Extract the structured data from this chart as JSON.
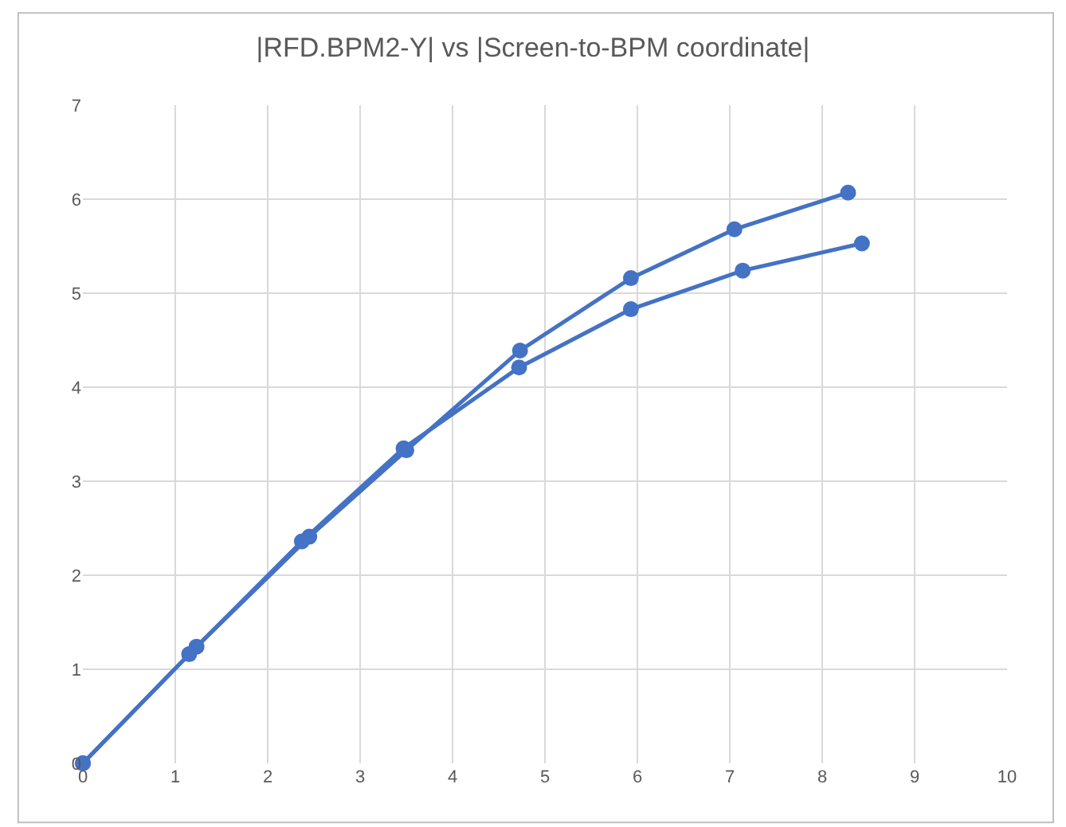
{
  "chart_data": {
    "type": "line",
    "title": "|RFD.BPM2-Y| vs |Screen-to-BPM coordinate|",
    "series": [
      {
        "color": "#4472c4",
        "x": [
          0,
          1.23,
          2.45,
          3.5,
          4.73,
          5.93,
          7.05,
          8.28
        ],
        "values": [
          0,
          1.24,
          2.41,
          3.33,
          4.39,
          5.16,
          5.68,
          6.07
        ]
      },
      {
        "color": "#4472c4",
        "x": [
          0,
          1.15,
          2.37,
          3.47,
          4.72,
          5.93,
          7.14,
          8.43
        ],
        "values": [
          0,
          1.16,
          2.36,
          3.35,
          4.21,
          4.83,
          5.24,
          5.53
        ]
      }
    ],
    "xlim": [
      0,
      10
    ],
    "xticks": [
      0,
      1,
      2,
      3,
      4,
      5,
      6,
      7,
      8,
      9,
      10
    ],
    "ylim": [
      0,
      7
    ],
    "yticks": [
      0,
      1,
      2,
      3,
      4,
      5,
      6,
      7
    ],
    "grid": true,
    "marker": "circle",
    "line_style": "solid"
  }
}
